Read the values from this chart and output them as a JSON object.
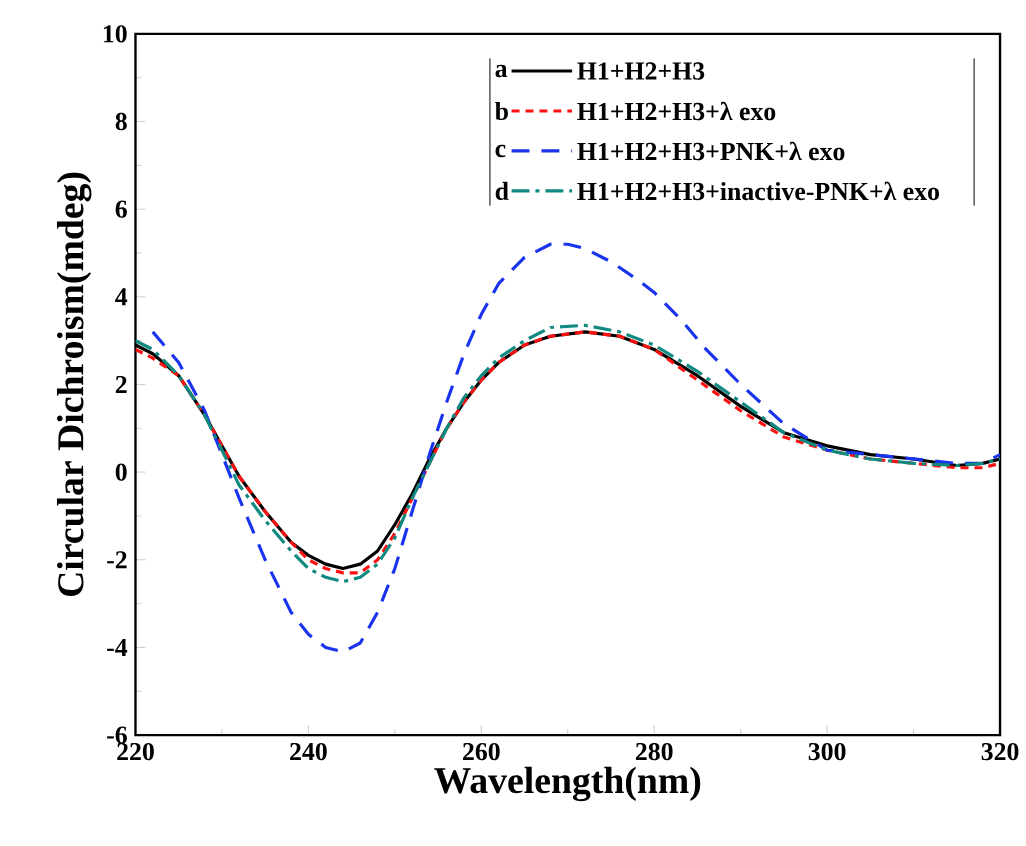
{
  "chart_data": {
    "type": "line",
    "xlabel": "Wavelength(nm)",
    "ylabel": "Circular Dichroism(mdeg)",
    "xlim": [
      220,
      320
    ],
    "ylim": [
      -6,
      10
    ],
    "xticks": [
      220,
      240,
      260,
      280,
      300,
      320
    ],
    "yticks": [
      -6,
      -4,
      -2,
      0,
      2,
      4,
      6,
      8,
      10
    ],
    "legend": "top right",
    "grid": false,
    "annotations": [
      "a",
      "b",
      "c",
      "d"
    ],
    "series": [
      {
        "name": "H1+H2+H3",
        "color": "#000000",
        "line_style": "solid",
        "x": [
          220,
          222,
          225,
          228,
          230,
          232,
          235,
          238,
          240,
          242,
          244,
          246,
          248,
          250,
          252,
          254,
          256,
          258,
          260,
          262,
          265,
          268,
          272,
          276,
          280,
          285,
          290,
          295,
          300,
          305,
          310,
          315,
          318,
          320
        ],
        "values": [
          2.9,
          2.7,
          2.2,
          1.3,
          0.6,
          -0.1,
          -0.9,
          -1.6,
          -1.9,
          -2.1,
          -2.2,
          -2.1,
          -1.8,
          -1.2,
          -0.5,
          0.3,
          1.0,
          1.6,
          2.1,
          2.5,
          2.9,
          3.1,
          3.2,
          3.1,
          2.8,
          2.2,
          1.5,
          0.9,
          0.6,
          0.4,
          0.3,
          0.15,
          0.2,
          0.3
        ]
      },
      {
        "name": "H1+H2+H3+λ exo",
        "color": "#ff1010",
        "line_style": "dashed",
        "x": [
          220,
          222,
          225,
          228,
          230,
          232,
          235,
          238,
          240,
          242,
          244,
          246,
          248,
          250,
          252,
          254,
          256,
          258,
          260,
          262,
          265,
          268,
          272,
          276,
          280,
          285,
          290,
          295,
          300,
          305,
          310,
          315,
          318,
          320
        ],
        "values": [
          2.8,
          2.6,
          2.2,
          1.3,
          0.6,
          -0.1,
          -0.9,
          -1.6,
          -2.0,
          -2.2,
          -2.3,
          -2.3,
          -2.0,
          -1.4,
          -0.6,
          0.2,
          1.0,
          1.6,
          2.1,
          2.5,
          2.9,
          3.1,
          3.2,
          3.1,
          2.8,
          2.1,
          1.4,
          0.8,
          0.5,
          0.3,
          0.2,
          0.1,
          0.1,
          0.2
        ]
      },
      {
        "name": "H1+H2+H3+PNK+λ exo",
        "color": "#1a33ee",
        "line_style": "dashed",
        "x": [
          222,
          225,
          228,
          230,
          232,
          235,
          238,
          240,
          242,
          244,
          246,
          248,
          250,
          252,
          254,
          256,
          258,
          260,
          262,
          265,
          268,
          270,
          272,
          275,
          278,
          280,
          283,
          286,
          290,
          295,
          300,
          305,
          310,
          315,
          318,
          320
        ],
        "values": [
          3.2,
          2.5,
          1.4,
          0.4,
          -0.6,
          -2.0,
          -3.2,
          -3.7,
          -4.0,
          -4.1,
          -3.9,
          -3.2,
          -2.2,
          -0.9,
          0.4,
          1.6,
          2.7,
          3.6,
          4.3,
          4.9,
          5.2,
          5.2,
          5.1,
          4.8,
          4.4,
          4.1,
          3.5,
          2.8,
          2.0,
          1.1,
          0.5,
          0.4,
          0.3,
          0.2,
          0.2,
          0.4
        ]
      },
      {
        "name": "H1+H2+H3+inactive-PNK+λ exo",
        "color": "#108a80",
        "line_style": "dashed",
        "x": [
          220,
          222,
          225,
          228,
          230,
          232,
          235,
          238,
          240,
          242,
          244,
          246,
          248,
          250,
          252,
          254,
          256,
          258,
          260,
          262,
          265,
          268,
          272,
          276,
          280,
          285,
          290,
          295,
          300,
          305,
          310,
          315,
          318,
          320
        ],
        "values": [
          3.0,
          2.8,
          2.2,
          1.3,
          0.5,
          -0.3,
          -1.1,
          -1.8,
          -2.2,
          -2.4,
          -2.5,
          -2.4,
          -2.1,
          -1.5,
          -0.6,
          0.2,
          1.0,
          1.7,
          2.2,
          2.6,
          3.0,
          3.3,
          3.35,
          3.2,
          2.9,
          2.3,
          1.6,
          0.9,
          0.5,
          0.3,
          0.2,
          0.15,
          0.2,
          0.3
        ]
      }
    ]
  }
}
